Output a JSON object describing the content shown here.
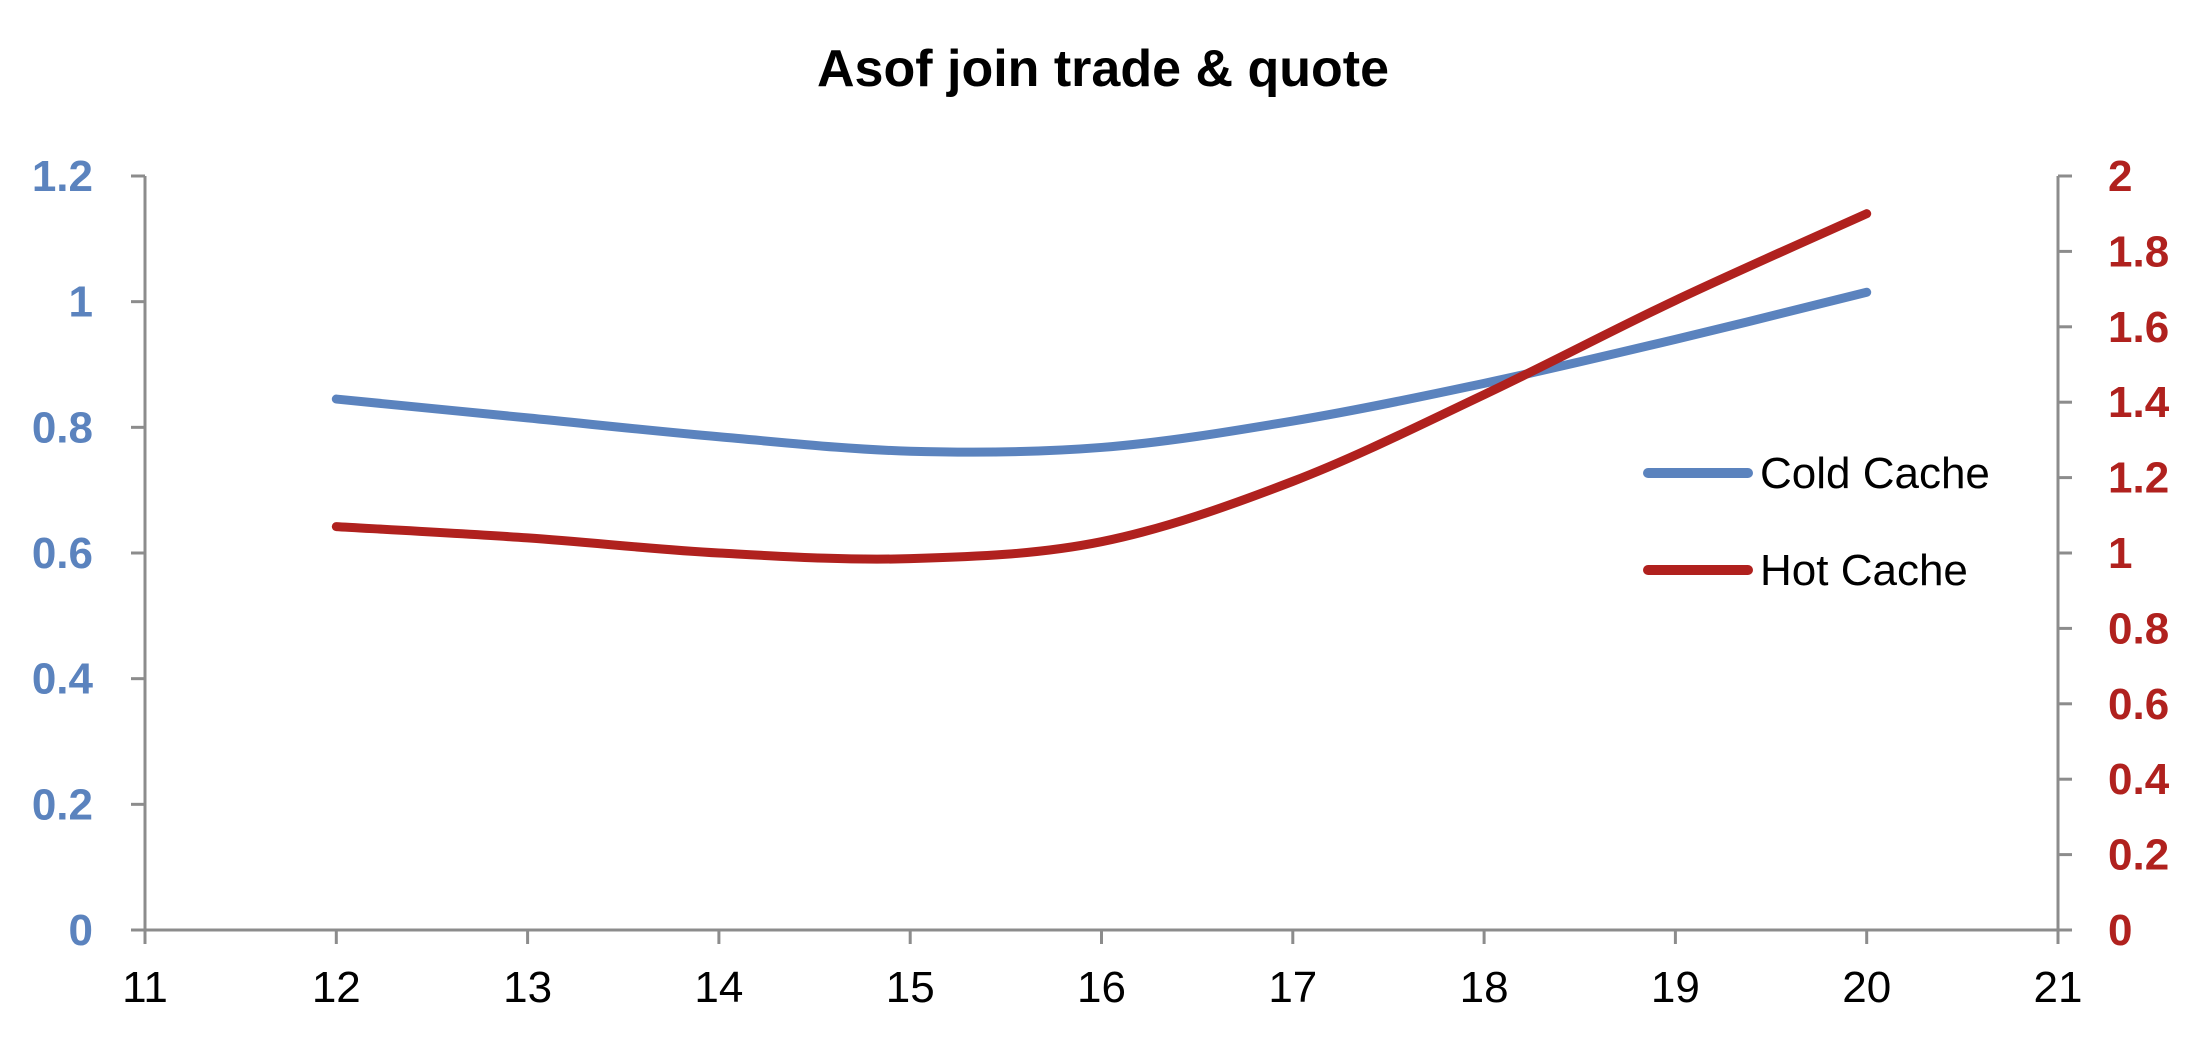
{
  "chart_data": {
    "type": "line",
    "title": "Asof join trade & quote",
    "x": [
      12,
      13,
      14,
      15,
      16,
      17,
      18,
      19,
      20
    ],
    "xlim": [
      11,
      21
    ],
    "xticks": [
      "11",
      "12",
      "13",
      "14",
      "15",
      "16",
      "17",
      "18",
      "19",
      "20",
      "21"
    ],
    "y_left": {
      "lim": [
        0,
        1.2
      ],
      "ticks": [
        "0",
        "0.2",
        "0.4",
        "0.6",
        "0.8",
        "1",
        "1.2"
      ],
      "color": "#5B83BE"
    },
    "y_right": {
      "lim": [
        0,
        2
      ],
      "ticks": [
        "0",
        "0.2",
        "0.4",
        "0.6",
        "0.8",
        "1",
        "1.2",
        "1.4",
        "1.6",
        "1.8",
        "2"
      ],
      "color": "#B0211E"
    },
    "series": [
      {
        "name": "Cold Cache",
        "axis": "left",
        "color": "#5B83BE",
        "values": [
          0.845,
          0.815,
          0.785,
          0.762,
          0.768,
          0.81,
          0.87,
          0.94,
          1.015
        ]
      },
      {
        "name": "Hot Cache",
        "axis": "right",
        "color": "#B0211E",
        "values": [
          1.07,
          1.04,
          1.0,
          0.985,
          1.03,
          1.19,
          1.42,
          1.67,
          1.9
        ]
      }
    ],
    "grid": false,
    "legend": "right"
  }
}
